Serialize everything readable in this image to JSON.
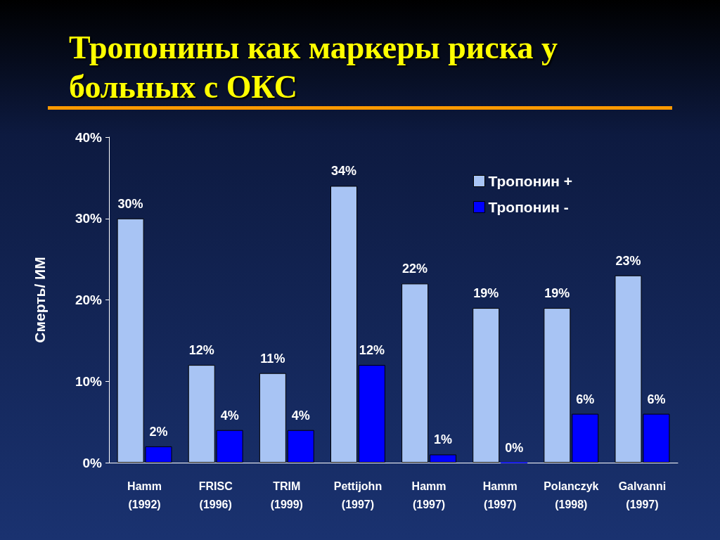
{
  "chart_data": {
    "type": "bar",
    "title": "Тропонины как маркеры риска у больных с ОКС",
    "ylabel": "Смерть/ ИМ",
    "categories": [
      "Hamm\n(1992)",
      "FRISC\n(1996)",
      "TRIM\n(1999)",
      "Pettijohn\n(1997)",
      "Hamm\n(1997)",
      "Hamm\n(1997)",
      "Polanczyk\n(1998)",
      "Galvanni\n(1997)"
    ],
    "series": [
      {
        "name": "Тропонин +",
        "color": "#a8c4f4",
        "values": [
          30,
          12,
          11,
          34,
          22,
          19,
          19,
          23
        ],
        "value_labels": [
          "30%",
          "12%",
          "11%",
          "34%",
          "22%",
          "19%",
          "19%",
          "23%"
        ]
      },
      {
        "name": "Тропонин -",
        "color": "#0000ff",
        "values": [
          2,
          4,
          4,
          12,
          1,
          0,
          6,
          6
        ],
        "value_labels": [
          "2%",
          "4%",
          "4%",
          "12%",
          "1%",
          "0%",
          "6%",
          "6%"
        ]
      }
    ],
    "ylim": [
      0,
      40
    ],
    "yticks": [
      {
        "value": 0,
        "label": "0%"
      },
      {
        "value": 10,
        "label": "10%"
      },
      {
        "value": 20,
        "label": "20%"
      },
      {
        "value": 30,
        "label": "30%"
      },
      {
        "value": 40,
        "label": "40%"
      }
    ],
    "grid": false,
    "legend": "top right"
  }
}
